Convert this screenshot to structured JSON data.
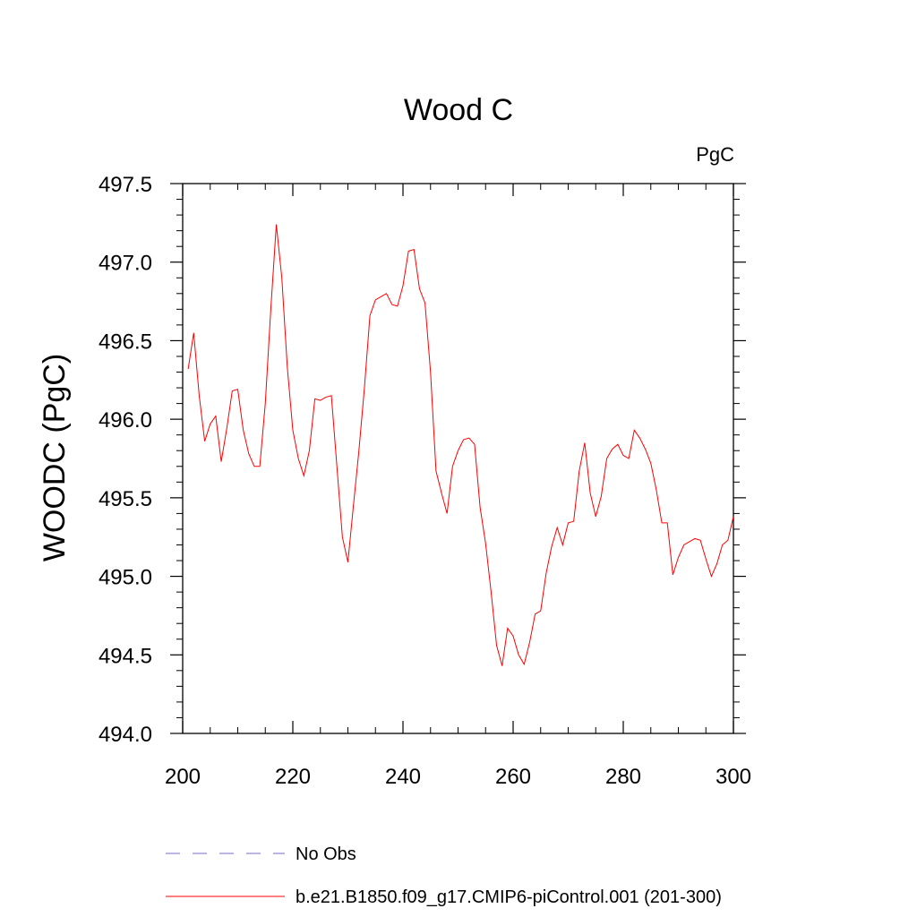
{
  "chart_data": {
    "type": "line",
    "title": "Wood C",
    "units_label": "PgC",
    "xlabel": "",
    "ylabel": "WOODC  (PgC)",
    "xlim": [
      200,
      300
    ],
    "ylim": [
      494.0,
      497.5
    ],
    "x_ticks": [
      200,
      220,
      240,
      260,
      280,
      300
    ],
    "x_tick_labels": [
      "200",
      "220",
      "240",
      "260",
      "280",
      "300"
    ],
    "y_ticks": [
      494.0,
      494.5,
      495.0,
      495.5,
      496.0,
      496.5,
      497.0,
      497.5
    ],
    "y_tick_labels": [
      "494.0",
      "494.5",
      "495.0",
      "495.5",
      "496.0",
      "496.5",
      "497.0",
      "497.5"
    ],
    "legend": [
      {
        "label": "No Obs",
        "color": "#7b68c8",
        "style": "dashed"
      },
      {
        "label": "b.e21.B1850.f09_g17.CMIP6-piControl.001 (201-300)",
        "color": "#ff0000",
        "style": "solid"
      }
    ],
    "series": [
      {
        "name": "b.e21.B1850.f09_g17.CMIP6-piControl.001 (201-300)",
        "color": "#ff0000",
        "x": [
          201,
          202,
          203,
          204,
          205,
          206,
          207,
          208,
          209,
          210,
          211,
          212,
          213,
          214,
          215,
          216,
          217,
          218,
          219,
          220,
          221,
          222,
          223,
          224,
          225,
          226,
          227,
          228,
          229,
          230,
          231,
          232,
          233,
          234,
          235,
          236,
          237,
          238,
          239,
          240,
          241,
          242,
          243,
          244,
          245,
          246,
          247,
          248,
          249,
          250,
          251,
          252,
          253,
          254,
          255,
          256,
          257,
          258,
          259,
          260,
          261,
          262,
          263,
          264,
          265,
          266,
          267,
          268,
          269,
          270,
          271,
          272,
          273,
          274,
          275,
          276,
          277,
          278,
          279,
          280,
          281,
          282,
          283,
          284,
          285,
          286,
          287,
          288,
          289,
          290,
          291,
          292,
          293,
          294,
          295,
          296,
          297,
          298,
          299,
          300
        ],
        "values": [
          496.32,
          496.55,
          496.15,
          495.86,
          495.97,
          496.02,
          495.73,
          495.94,
          496.18,
          496.19,
          495.93,
          495.78,
          495.7,
          495.7,
          496.1,
          496.7,
          497.24,
          496.9,
          496.33,
          495.93,
          495.75,
          495.64,
          495.8,
          496.13,
          496.12,
          496.14,
          496.15,
          495.7,
          495.25,
          495.09,
          495.45,
          495.8,
          496.2,
          496.66,
          496.76,
          496.78,
          496.8,
          496.73,
          496.72,
          496.85,
          497.07,
          497.08,
          496.83,
          496.74,
          496.3,
          495.67,
          495.53,
          495.4,
          495.7,
          495.8,
          495.87,
          495.88,
          495.84,
          495.44,
          495.21,
          494.9,
          494.56,
          494.43,
          494.67,
          494.62,
          494.5,
          494.44,
          494.58,
          494.76,
          494.78,
          495.02,
          495.19,
          495.31,
          495.2,
          495.34,
          495.35,
          495.67,
          495.85,
          495.53,
          495.38,
          495.51,
          495.75,
          495.81,
          495.84,
          495.77,
          495.75,
          495.93,
          495.88,
          495.81,
          495.72,
          495.55,
          495.34,
          495.34,
          495.01,
          495.12,
          495.2,
          495.22,
          495.24,
          495.23,
          495.11,
          495.0,
          495.08,
          495.2,
          495.23,
          495.38
        ]
      }
    ]
  }
}
